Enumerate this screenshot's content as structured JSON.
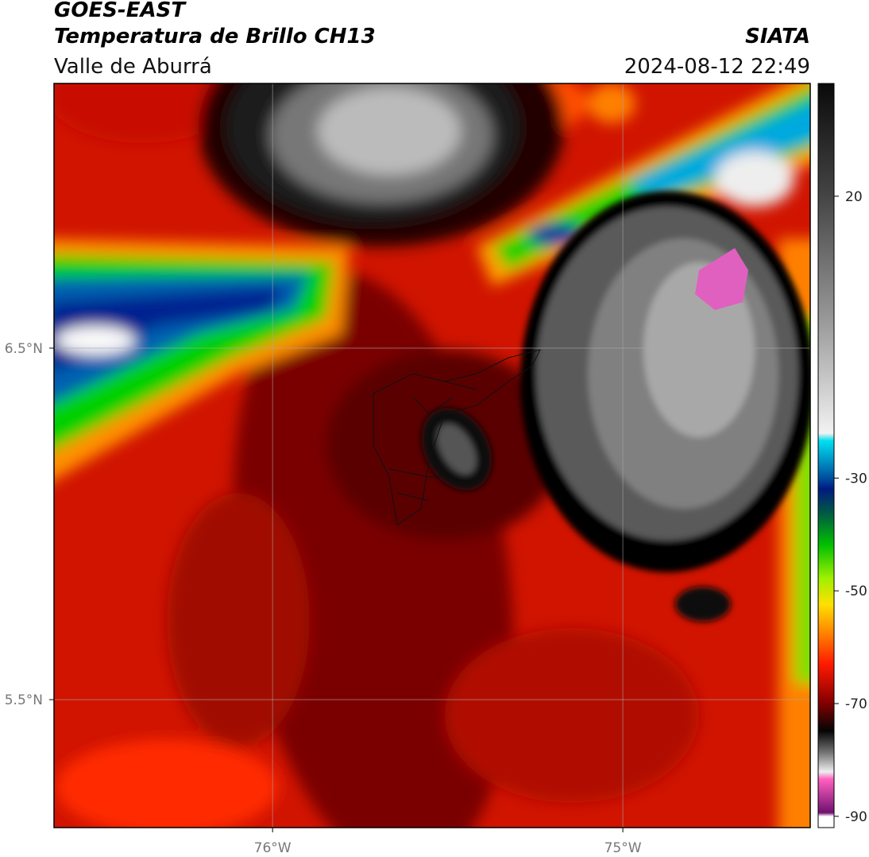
{
  "header": {
    "title": "GOES-EAST",
    "subtitle": "Temperatura de Brillo CH13",
    "agency": "SIATA",
    "region": "Valle de Aburrá",
    "timestamp": "2024-08-12 22:49"
  },
  "map": {
    "xlim": [
      -76.624,
      -74.465
    ],
    "ylim": [
      5.136,
      7.253
    ],
    "xticks": [
      {
        "value": -76,
        "label": "76°W"
      },
      {
        "value": -75,
        "label": "75°W"
      }
    ],
    "yticks": [
      {
        "value": 6.5,
        "label": "6.5°N"
      },
      {
        "value": 5.5,
        "label": "5.5°N"
      }
    ],
    "grid": true
  },
  "colorbar": {
    "lim": [
      -92,
      40
    ],
    "ticks": [
      20,
      -30,
      -50,
      -70,
      -90
    ]
  }
}
